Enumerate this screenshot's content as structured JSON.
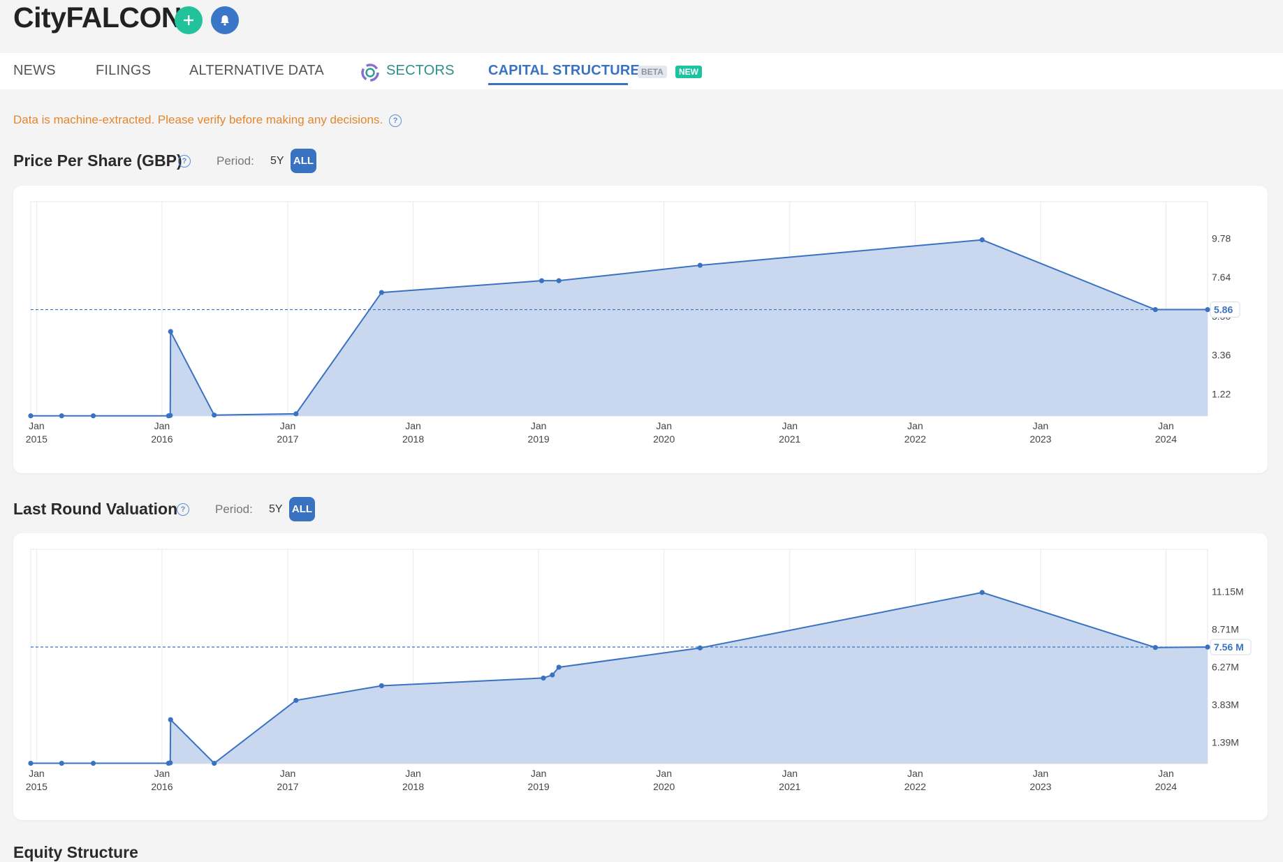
{
  "header": {
    "company": "CityFALCON"
  },
  "tabs": [
    {
      "label": "NEWS"
    },
    {
      "label": "FILINGS"
    },
    {
      "label": "ALTERNATIVE DATA"
    },
    {
      "label": "SECTORS"
    },
    {
      "label": "CAPITAL STRUCTURE"
    }
  ],
  "badges": {
    "beta": "BETA",
    "new": "NEW"
  },
  "notice": "Data is machine-extracted. Please verify before making any decisions.",
  "period": {
    "label": "Period:",
    "five_year": "5Y",
    "all": "ALL"
  },
  "colors": {
    "accent": "#3a72c2",
    "fill": "#c9d8ef",
    "warning": "#e2872e",
    "add": "#22c29a"
  },
  "icons": {
    "add": "plus-icon",
    "bell": "bell-icon",
    "sectors": "sectors-ring-icon",
    "help": "question-circle-icon"
  },
  "bottom_title": "Equity Structure",
  "chart_data": [
    {
      "type": "area",
      "title": "Price Per Share (GBP)",
      "x_axis": "date",
      "y_ticks": [
        "9.78",
        "7.64",
        "5.50",
        "3.36",
        "1.22"
      ],
      "y_tick_values": [
        9.78,
        7.64,
        5.5,
        3.36,
        1.22
      ],
      "ylim": [
        0,
        11.8
      ],
      "xlim": [
        "2014-12-15",
        "2024-05-01"
      ],
      "x_ticks": [
        {
          "month": "Jan",
          "year": "2015",
          "date": "2015-01-01"
        },
        {
          "month": "Jan",
          "year": "2016",
          "date": "2016-01-01"
        },
        {
          "month": "Jan",
          "year": "2017",
          "date": "2017-01-01"
        },
        {
          "month": "Jan",
          "year": "2018",
          "date": "2018-01-01"
        },
        {
          "month": "Jan",
          "year": "2019",
          "date": "2019-01-01"
        },
        {
          "month": "Jan",
          "year": "2020",
          "date": "2020-01-01"
        },
        {
          "month": "Jan",
          "year": "2021",
          "date": "2021-01-01"
        },
        {
          "month": "Jan",
          "year": "2022",
          "date": "2022-01-01"
        },
        {
          "month": "Jan",
          "year": "2023",
          "date": "2023-01-01"
        },
        {
          "month": "Jan",
          "year": "2024",
          "date": "2024-01-01"
        }
      ],
      "current_value": 5.86,
      "current_label": "5.86",
      "points": [
        {
          "x": "2014-12-15",
          "y": 0.01
        },
        {
          "x": "2015-03-15",
          "y": 0.01
        },
        {
          "x": "2015-06-15",
          "y": 0.01
        },
        {
          "x": "2016-01-20",
          "y": 0.01
        },
        {
          "x": "2016-01-25",
          "y": 0.03
        },
        {
          "x": "2016-01-26",
          "y": 4.65
        },
        {
          "x": "2016-06-01",
          "y": 0.05
        },
        {
          "x": "2017-01-25",
          "y": 0.12
        },
        {
          "x": "2017-10-01",
          "y": 6.8
        },
        {
          "x": "2019-01-10",
          "y": 7.45
        },
        {
          "x": "2019-03-01",
          "y": 7.45
        },
        {
          "x": "2020-04-15",
          "y": 8.3
        },
        {
          "x": "2022-07-15",
          "y": 9.7
        },
        {
          "x": "2023-12-01",
          "y": 5.86
        },
        {
          "x": "2024-05-01",
          "y": 5.86
        }
      ]
    },
    {
      "type": "area",
      "title": "Last Round Valuation",
      "x_axis": "date",
      "y_ticks": [
        "11.15M",
        "8.71M",
        "6.27M",
        "3.83M",
        "1.39M"
      ],
      "y_tick_values": [
        11.15,
        8.71,
        6.27,
        3.83,
        1.39
      ],
      "ylim": [
        0,
        13.9
      ],
      "xlim": [
        "2014-12-15",
        "2024-05-01"
      ],
      "x_ticks": [
        {
          "month": "Jan",
          "year": "2015",
          "date": "2015-01-01"
        },
        {
          "month": "Jan",
          "year": "2016",
          "date": "2016-01-01"
        },
        {
          "month": "Jan",
          "year": "2017",
          "date": "2017-01-01"
        },
        {
          "month": "Jan",
          "year": "2018",
          "date": "2018-01-01"
        },
        {
          "month": "Jan",
          "year": "2019",
          "date": "2019-01-01"
        },
        {
          "month": "Jan",
          "year": "2020",
          "date": "2020-01-01"
        },
        {
          "month": "Jan",
          "year": "2021",
          "date": "2021-01-01"
        },
        {
          "month": "Jan",
          "year": "2022",
          "date": "2022-01-01"
        },
        {
          "month": "Jan",
          "year": "2023",
          "date": "2023-01-01"
        },
        {
          "month": "Jan",
          "year": "2024",
          "date": "2024-01-01"
        }
      ],
      "current_value": 7.56,
      "current_label": "7.56 M",
      "points": [
        {
          "x": "2014-12-15",
          "y": 0.02
        },
        {
          "x": "2015-03-15",
          "y": 0.02
        },
        {
          "x": "2015-06-15",
          "y": 0.02
        },
        {
          "x": "2016-01-20",
          "y": 0.02
        },
        {
          "x": "2016-01-25",
          "y": 0.05
        },
        {
          "x": "2016-01-26",
          "y": 2.85
        },
        {
          "x": "2016-06-01",
          "y": 0.02
        },
        {
          "x": "2017-01-25",
          "y": 4.1
        },
        {
          "x": "2017-10-01",
          "y": 5.05
        },
        {
          "x": "2019-01-15",
          "y": 5.55
        },
        {
          "x": "2019-02-10",
          "y": 5.75
        },
        {
          "x": "2019-03-01",
          "y": 6.25
        },
        {
          "x": "2020-04-15",
          "y": 7.5
        },
        {
          "x": "2022-07-15",
          "y": 11.1
        },
        {
          "x": "2023-12-01",
          "y": 7.53
        },
        {
          "x": "2024-05-01",
          "y": 7.56
        }
      ]
    }
  ]
}
